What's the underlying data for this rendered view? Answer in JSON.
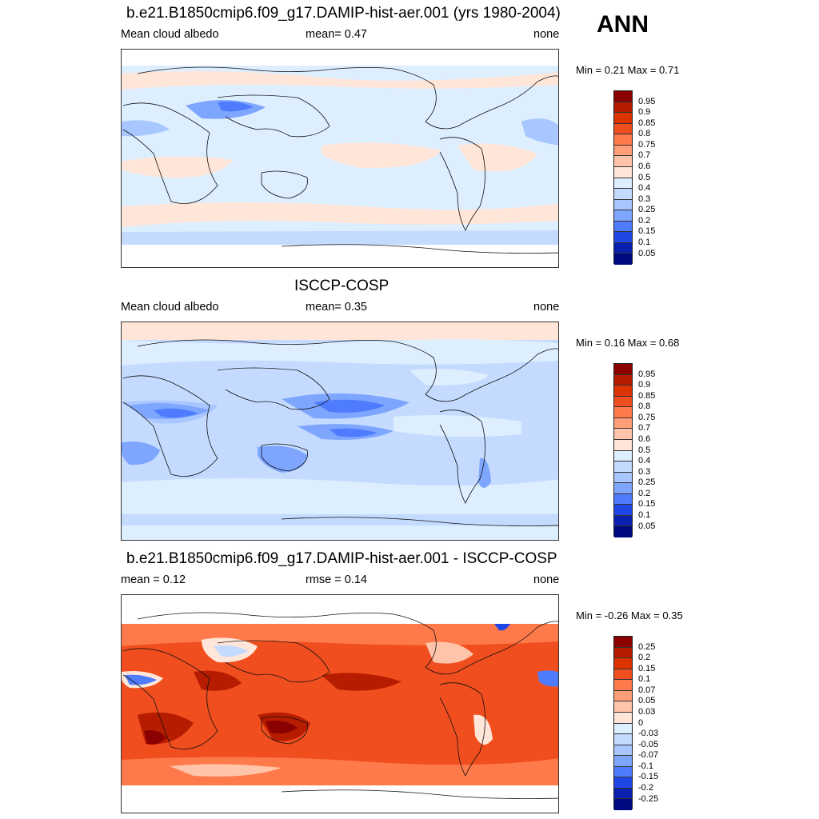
{
  "season": "ANN",
  "panels": [
    {
      "title": "b.e21.B1850cmip6.f09_g17.DAMIP-hist-aer.001 (yrs 1980-2004)",
      "left_label": "Mean cloud albedo",
      "center_label": "mean=   0.47",
      "right_label": "none",
      "min_max": "Min =   0.21 Max =   0.71"
    },
    {
      "title": "ISCCP-COSP",
      "left_label": "Mean cloud albedo",
      "center_label": "mean=   0.35",
      "right_label": "none",
      "min_max": "Min =   0.16 Max =   0.68"
    },
    {
      "title": "b.e21.B1850cmip6.f09_g17.DAMIP-hist-aer.001 - ISCCP-COSP",
      "left_label": "mean =   0.12",
      "center_label": "rmse =   0.14",
      "right_label": "none",
      "min_max": "Min =  -0.26 Max =   0.35"
    }
  ],
  "colorbars": {
    "albedo": {
      "levels": [
        "0.95",
        "0.9",
        "0.85",
        "0.8",
        "0.75",
        "0.7",
        "0.6",
        "0.5",
        "0.4",
        "0.3",
        "0.25",
        "0.2",
        "0.15",
        "0.1",
        "0.05"
      ],
      "colors": [
        "#8b0000",
        "#b51c00",
        "#dc3300",
        "#f04e1e",
        "#ff7a4a",
        "#ff9e78",
        "#ffc4aa",
        "#ffe6d8",
        "#ddeeff",
        "#c4dbff",
        "#a8c6ff",
        "#7ea6ff",
        "#4f7cff",
        "#2046e6",
        "#0a20b0",
        "#000a80"
      ]
    },
    "difference": {
      "levels": [
        "0.25",
        "0.2",
        "0.15",
        "0.1",
        "0.07",
        "0.05",
        "0.03",
        "0",
        "-0.03",
        "-0.05",
        "-0.07",
        "-0.1",
        "-0.15",
        "-0.2",
        "-0.25"
      ],
      "colors": [
        "#8b0000",
        "#b51c00",
        "#dc3300",
        "#f04e1e",
        "#ff7a4a",
        "#ff9e78",
        "#ffc4aa",
        "#ffe6d8",
        "#ddeeff",
        "#c4dbff",
        "#a8c6ff",
        "#7ea6ff",
        "#4f7cff",
        "#2046e6",
        "#0a20b0",
        "#000a80"
      ]
    }
  }
}
